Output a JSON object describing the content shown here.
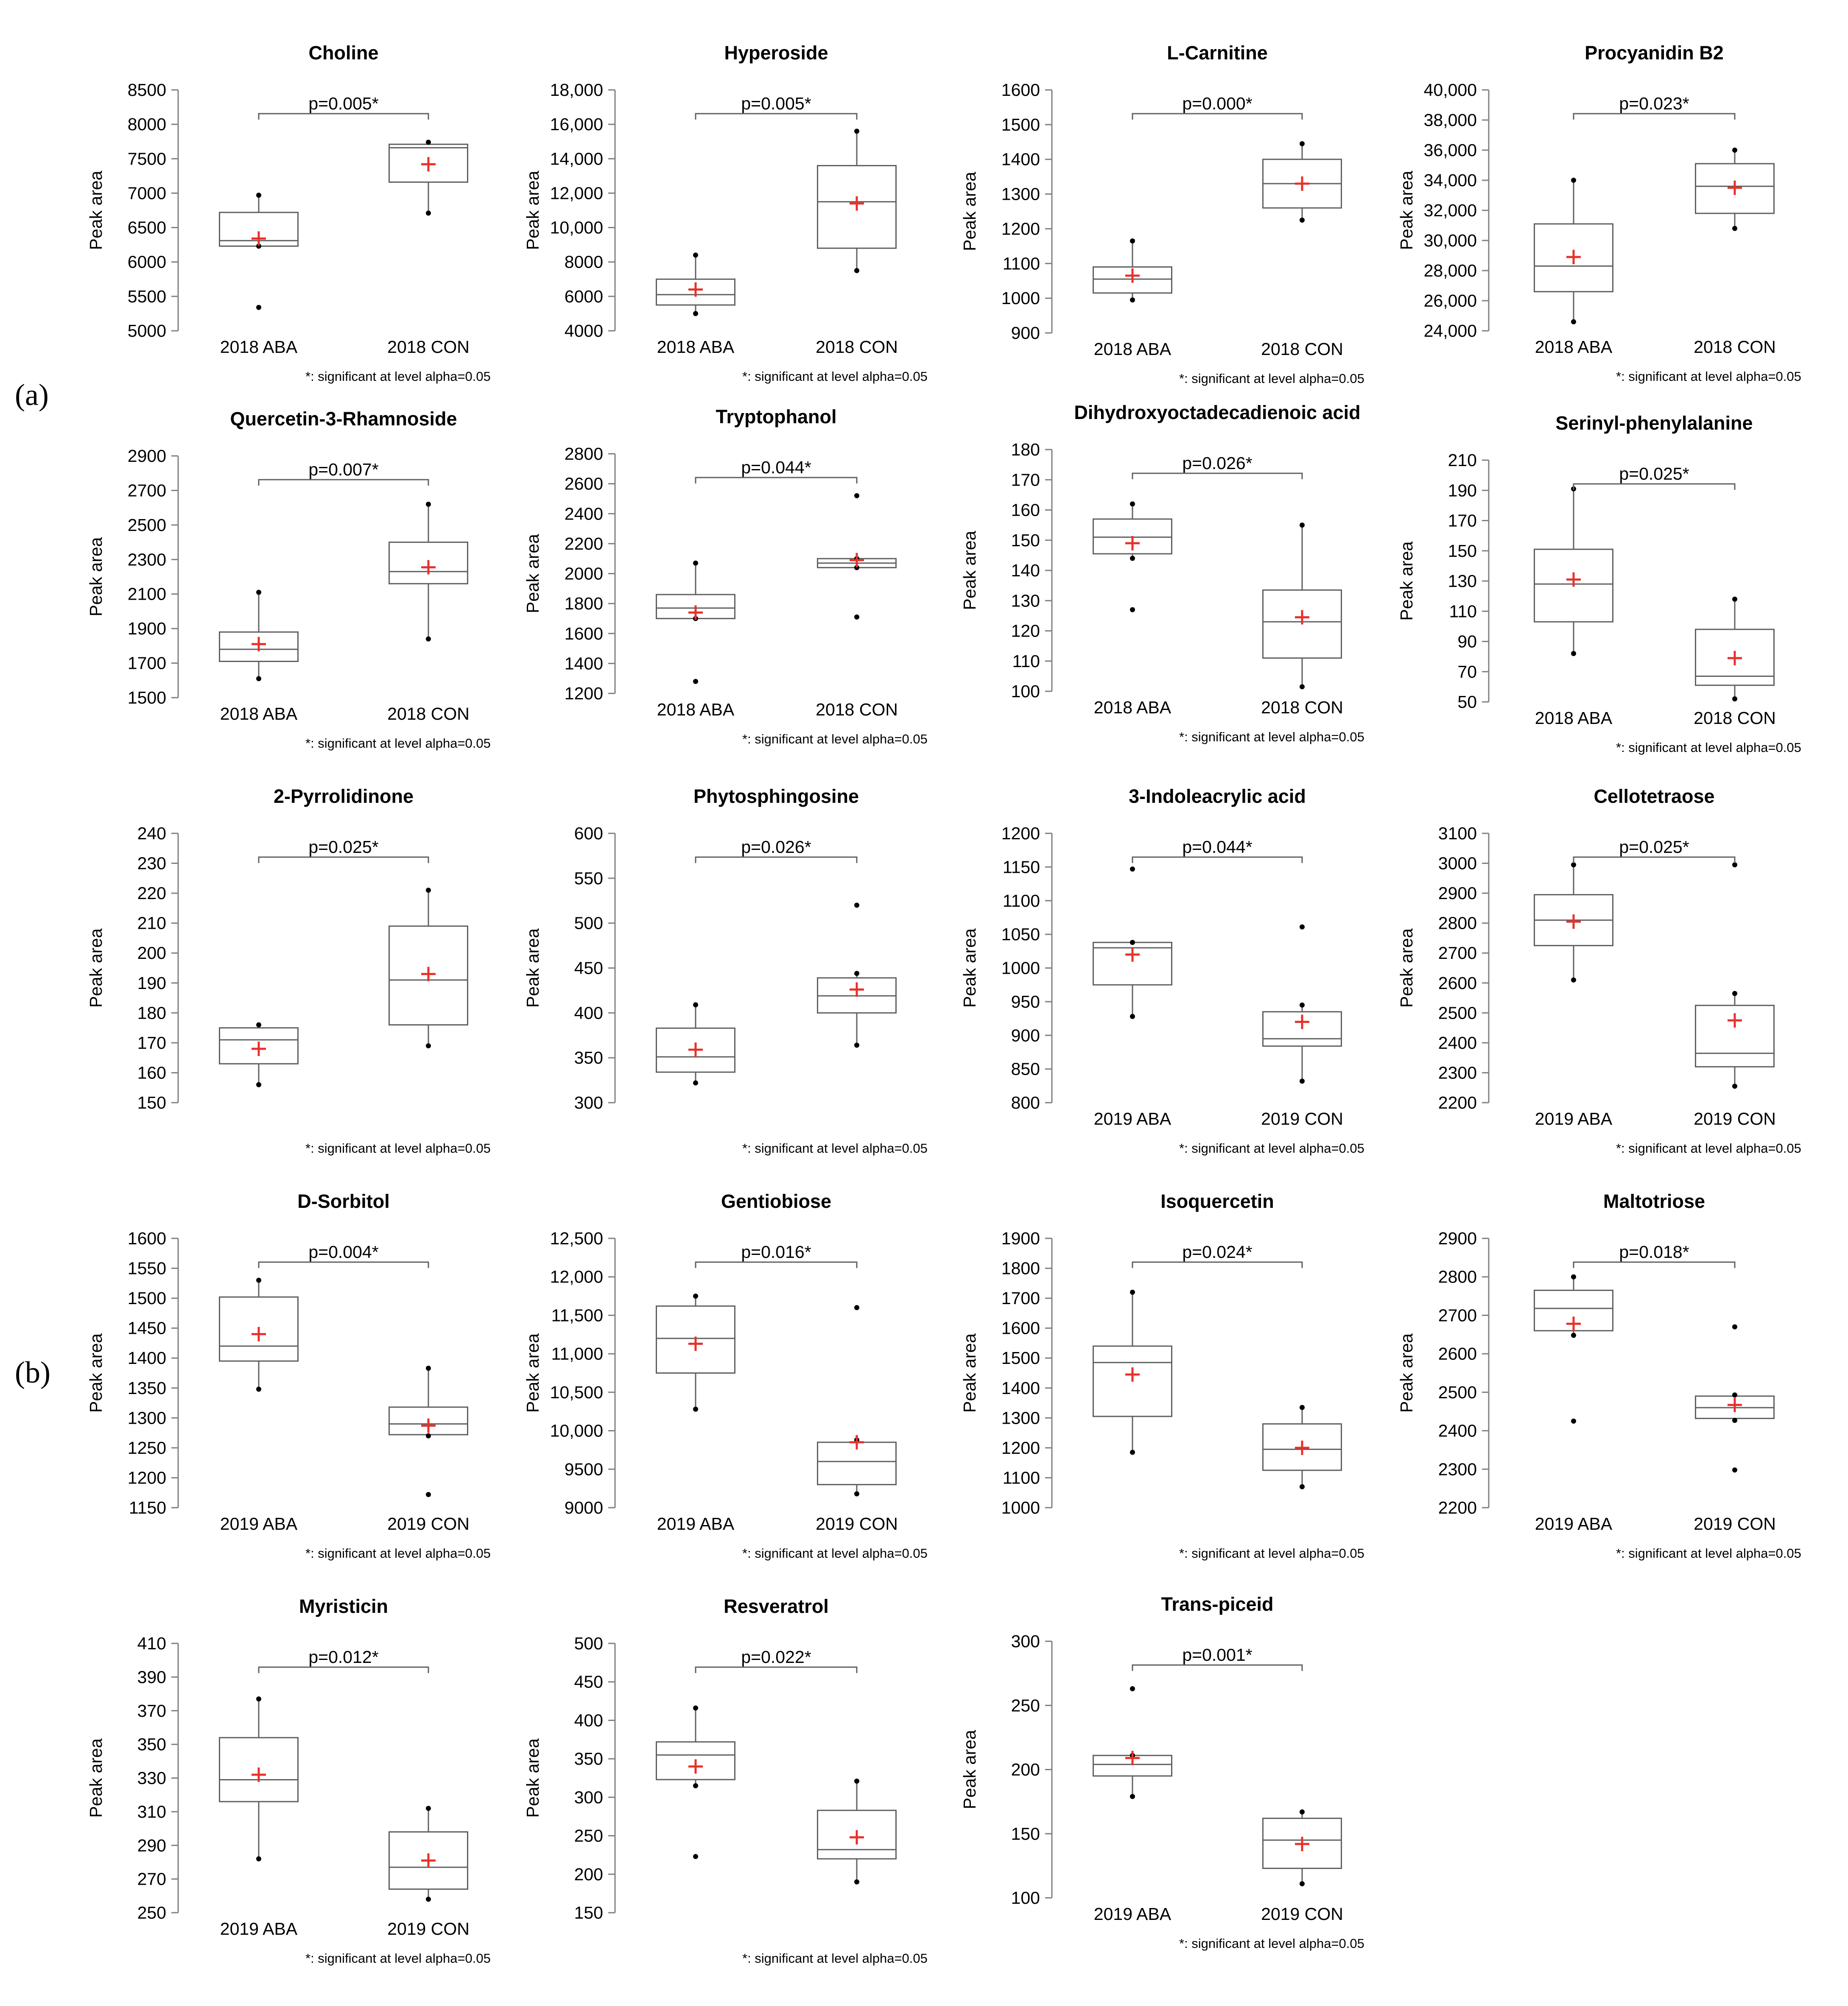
{
  "panel_labels": [
    "(a)",
    "(b)"
  ],
  "chart_data": [
    {
      "type": "box",
      "title": "Choline",
      "ylabel": "Peak area",
      "ylim": [
        5000,
        8500
      ],
      "yticks": [
        5000,
        5500,
        6000,
        6500,
        7000,
        7500,
        8000,
        8500
      ],
      "categories": [
        "2018 ABA",
        "2018 CON"
      ],
      "pvalue": "p=0.005*",
      "note": "*: significant at level alpha=0.05",
      "boxes": [
        {
          "min": 6230,
          "q1": 6230,
          "median": 6310,
          "q3": 6720,
          "max": 6970,
          "mean": 6340,
          "outliers": [
            5340
          ]
        },
        {
          "min": 6710,
          "q1": 7160,
          "median": 7660,
          "q3": 7710,
          "max": 7740,
          "mean": 7420,
          "outliers": []
        }
      ]
    },
    {
      "type": "box",
      "title": "Hyperoside",
      "ylabel": "Peak area",
      "ylim": [
        4000,
        18000
      ],
      "yticks": [
        4000,
        6000,
        8000,
        10000,
        12000,
        14000,
        16000,
        18000
      ],
      "categories": [
        "2018 ABA",
        "2018 CON"
      ],
      "pvalue": "p=0.005*",
      "note": "*: significant at level alpha=0.05",
      "boxes": [
        {
          "min": 5000,
          "q1": 5500,
          "median": 6100,
          "q3": 7000,
          "max": 8400,
          "mean": 6400,
          "outliers": []
        },
        {
          "min": 7500,
          "q1": 8800,
          "median": 11500,
          "q3": 13600,
          "max": 15600,
          "mean": 11400,
          "outliers": []
        }
      ]
    },
    {
      "type": "box",
      "title": "L-Carnitine",
      "ylabel": "Peak area",
      "ylim": [
        900,
        1600
      ],
      "yticks": [
        900,
        1000,
        1100,
        1200,
        1300,
        1400,
        1500,
        1600
      ],
      "categories": [
        "2018 ABA",
        "2018 CON"
      ],
      "pvalue": "p=0.000*",
      "note": "*: significant at level alpha=0.05",
      "boxes": [
        {
          "min": 995,
          "q1": 1015,
          "median": 1055,
          "q3": 1090,
          "max": 1165,
          "mean": 1065,
          "outliers": []
        },
        {
          "min": 1225,
          "q1": 1260,
          "median": 1330,
          "q3": 1400,
          "max": 1445,
          "mean": 1330,
          "outliers": []
        }
      ]
    },
    {
      "type": "box",
      "title": "Procyanidin B2",
      "ylabel": "Peak area",
      "ylim": [
        24000,
        40000
      ],
      "yticks": [
        24000,
        26000,
        28000,
        30000,
        32000,
        34000,
        36000,
        38000,
        40000
      ],
      "categories": [
        "2018 ABA",
        "2018 CON"
      ],
      "pvalue": "p=0.023*",
      "note": "*: significant at level alpha=0.05",
      "boxes": [
        {
          "min": 24600,
          "q1": 26600,
          "median": 28300,
          "q3": 31100,
          "max": 34000,
          "mean": 28900,
          "outliers": []
        },
        {
          "min": 30800,
          "q1": 31800,
          "median": 33600,
          "q3": 35100,
          "max": 36000,
          "mean": 33500,
          "outliers": []
        }
      ]
    },
    {
      "type": "box",
      "title": "Quercetin-3-Rhamnoside",
      "ylabel": "Peak area",
      "ylim": [
        1500,
        2900
      ],
      "yticks": [
        1500,
        1700,
        1900,
        2100,
        2300,
        2500,
        2700,
        2900
      ],
      "categories": [
        "2018 ABA",
        "2018 CON"
      ],
      "pvalue": "p=0.007*",
      "note": "*: significant at level alpha=0.05",
      "boxes": [
        {
          "min": 1610,
          "q1": 1710,
          "median": 1780,
          "q3": 1880,
          "max": 2110,
          "mean": 1810,
          "outliers": []
        },
        {
          "min": 1840,
          "q1": 2160,
          "median": 2230,
          "q3": 2400,
          "max": 2620,
          "mean": 2255,
          "outliers": []
        }
      ]
    },
    {
      "type": "box",
      "title": "Tryptophanol",
      "ylabel": "Peak area",
      "ylim": [
        1200,
        2800
      ],
      "yticks": [
        1200,
        1400,
        1600,
        1800,
        2000,
        2200,
        2400,
        2600,
        2800
      ],
      "categories": [
        "2018 ABA",
        "2018 CON"
      ],
      "pvalue": "p=0.044*",
      "note": "*: significant at level alpha=0.05",
      "boxes": [
        {
          "min": 1700,
          "q1": 1700,
          "median": 1770,
          "q3": 1860,
          "max": 2070,
          "mean": 1740,
          "outliers": [
            1280
          ]
        },
        {
          "min": 2040,
          "q1": 2040,
          "median": 2070,
          "q3": 2100,
          "max": 2100,
          "mean": 2090,
          "outliers": [
            1710,
            2520
          ]
        }
      ]
    },
    {
      "type": "box",
      "title": "Dihydroxyoctadecadienoic acid",
      "ylabel": "Peak area",
      "ylim": [
        100,
        180
      ],
      "yticks": [
        100,
        110,
        120,
        130,
        140,
        150,
        160,
        170,
        180
      ],
      "categories": [
        "2018 ABA",
        "2018 CON"
      ],
      "pvalue": "p=0.026*",
      "note": "*: significant at level alpha=0.05",
      "boxes": [
        {
          "min": 144,
          "q1": 145.5,
          "median": 151,
          "q3": 157,
          "max": 162,
          "mean": 149,
          "outliers": [
            127
          ]
        },
        {
          "min": 101.5,
          "q1": 111,
          "median": 123,
          "q3": 133.5,
          "max": 155,
          "mean": 124.5,
          "outliers": []
        }
      ]
    },
    {
      "type": "box",
      "title": "Serinyl-phenylalanine",
      "ylabel": "Peak area",
      "ylim": [
        50,
        210
      ],
      "yticks": [
        50,
        70,
        90,
        110,
        130,
        150,
        170,
        190,
        210
      ],
      "categories": [
        "2018 ABA",
        "2018 CON"
      ],
      "pvalue": "p=0.025*",
      "note": "*: significant at level alpha=0.05",
      "boxes": [
        {
          "min": 82,
          "q1": 103,
          "median": 128,
          "q3": 151,
          "max": 191,
          "mean": 131,
          "outliers": []
        },
        {
          "min": 52,
          "q1": 61,
          "median": 67,
          "q3": 98,
          "max": 118,
          "mean": 79,
          "outliers": []
        }
      ]
    },
    {
      "type": "box",
      "title": "2-Pyrrolidinone",
      "ylabel": "Peak area",
      "ylim": [
        150,
        240
      ],
      "yticks": [
        150,
        160,
        170,
        180,
        190,
        200,
        210,
        220,
        230,
        240
      ],
      "categories": [
        "",
        ""
      ],
      "pvalue": "p=0.025*",
      "note": "*: significant at level alpha=0.05",
      "boxes": [
        {
          "min": 156,
          "q1": 163,
          "median": 171,
          "q3": 175,
          "max": 176,
          "mean": 168,
          "outliers": []
        },
        {
          "min": 169,
          "q1": 176,
          "median": 191,
          "q3": 209,
          "max": 221,
          "mean": 193,
          "outliers": []
        }
      ]
    },
    {
      "type": "box",
      "title": "Phytosphingosine",
      "ylabel": "Peak area",
      "ylim": [
        300,
        600
      ],
      "yticks": [
        300,
        350,
        400,
        450,
        500,
        550,
        600
      ],
      "categories": [
        "",
        ""
      ],
      "pvalue": "p=0.026*",
      "note": "*: significant at level alpha=0.05",
      "boxes": [
        {
          "min": 322,
          "q1": 334,
          "median": 351,
          "q3": 383,
          "max": 409,
          "mean": 359,
          "outliers": []
        },
        {
          "min": 364,
          "q1": 400,
          "median": 419,
          "q3": 439,
          "max": 444,
          "mean": 426,
          "outliers": [
            520
          ]
        }
      ]
    },
    {
      "type": "box",
      "title": "3-Indoleacrylic acid",
      "ylabel": "Peak area",
      "ylim": [
        800,
        1200
      ],
      "yticks": [
        800,
        850,
        900,
        950,
        1000,
        1050,
        1100,
        1150,
        1200
      ],
      "categories": [
        "2019 ABA",
        "2019 CON"
      ],
      "pvalue": "p=0.044*",
      "note": "*: significant at level alpha=0.05",
      "boxes": [
        {
          "min": 928,
          "q1": 975,
          "median": 1030,
          "q3": 1038,
          "max": 1038,
          "mean": 1020,
          "outliers": [
            1147
          ]
        },
        {
          "min": 832,
          "q1": 884,
          "median": 895,
          "q3": 935,
          "max": 945,
          "mean": 920,
          "outliers": [
            1061
          ]
        }
      ]
    },
    {
      "type": "box",
      "title": "Cellotetraose",
      "ylabel": "Peak area",
      "ylim": [
        2200,
        3100
      ],
      "yticks": [
        2200,
        2300,
        2400,
        2500,
        2600,
        2700,
        2800,
        2900,
        3000,
        3100
      ],
      "categories": [
        "2019 ABA",
        "2019 CON"
      ],
      "pvalue": "p=0.025*",
      "note": "*: significant at level alpha=0.05",
      "boxes": [
        {
          "min": 2610,
          "q1": 2725,
          "median": 2810,
          "q3": 2895,
          "max": 2995,
          "mean": 2805,
          "outliers": []
        },
        {
          "min": 2255,
          "q1": 2320,
          "median": 2365,
          "q3": 2525,
          "max": 2565,
          "mean": 2475,
          "outliers": [
            2995
          ]
        }
      ]
    },
    {
      "type": "box",
      "title": "D-Sorbitol",
      "ylabel": "Peak area",
      "ylim": [
        1150,
        1600
      ],
      "yticks": [
        1150,
        1200,
        1250,
        1300,
        1350,
        1400,
        1450,
        1500,
        1550,
        1600
      ],
      "categories": [
        "2019 ABA",
        "2019 CON"
      ],
      "pvalue": "p=0.004*",
      "note": "*: significant at level alpha=0.05",
      "boxes": [
        {
          "min": 1348,
          "q1": 1395,
          "median": 1420,
          "q3": 1502,
          "max": 1530,
          "mean": 1440,
          "outliers": []
        },
        {
          "min": 1270,
          "q1": 1272,
          "median": 1290,
          "q3": 1318,
          "max": 1383,
          "mean": 1287,
          "outliers": [
            1172
          ]
        }
      ]
    },
    {
      "type": "box",
      "title": "Gentiobiose",
      "ylabel": "Peak area",
      "ylim": [
        9000,
        12500
      ],
      "yticks": [
        9000,
        9500,
        10000,
        10500,
        11000,
        11500,
        12000,
        12500
      ],
      "categories": [
        "2019 ABA",
        "2019 CON"
      ],
      "pvalue": "p=0.016*",
      "note": "*: significant at level alpha=0.05",
      "boxes": [
        {
          "min": 10280,
          "q1": 10750,
          "median": 11200,
          "q3": 11620,
          "max": 11750,
          "mean": 11130,
          "outliers": []
        },
        {
          "min": 9180,
          "q1": 9300,
          "median": 9600,
          "q3": 9850,
          "max": 9880,
          "mean": 9850,
          "outliers": [
            11600
          ]
        }
      ]
    },
    {
      "type": "box",
      "title": "Isoquercetin",
      "ylabel": "Peak area",
      "ylim": [
        1000,
        1900
      ],
      "yticks": [
        1000,
        1100,
        1200,
        1300,
        1400,
        1500,
        1600,
        1700,
        1800,
        1900
      ],
      "categories": [
        "",
        ""
      ],
      "pvalue": "p=0.024*",
      "note": "*: significant at level alpha=0.05",
      "boxes": [
        {
          "min": 1185,
          "q1": 1305,
          "median": 1485,
          "q3": 1540,
          "max": 1720,
          "mean": 1445,
          "outliers": []
        },
        {
          "min": 1070,
          "q1": 1125,
          "median": 1195,
          "q3": 1280,
          "max": 1335,
          "mean": 1200,
          "outliers": []
        }
      ]
    },
    {
      "type": "box",
      "title": "Maltotriose",
      "ylabel": "Peak area",
      "ylim": [
        2200,
        2900
      ],
      "yticks": [
        2200,
        2300,
        2400,
        2500,
        2600,
        2700,
        2800,
        2900
      ],
      "categories": [
        "2019 ABA",
        "2019 CON"
      ],
      "pvalue": "p=0.018*",
      "note": "*: significant at level alpha=0.05",
      "boxes": [
        {
          "min": 2648,
          "q1": 2660,
          "median": 2718,
          "q3": 2765,
          "max": 2800,
          "mean": 2678,
          "outliers": [
            2425
          ]
        },
        {
          "min": 2427,
          "q1": 2432,
          "median": 2460,
          "q3": 2490,
          "max": 2493,
          "mean": 2467,
          "outliers": [
            2298,
            2670
          ]
        }
      ]
    },
    {
      "type": "box",
      "title": "Myristicin",
      "ylabel": "Peak area",
      "ylim": [
        250,
        410
      ],
      "yticks": [
        250,
        270,
        290,
        310,
        330,
        350,
        370,
        390,
        410
      ],
      "categories": [
        "2019 ABA",
        "2019 CON"
      ],
      "pvalue": "p=0.012*",
      "note": "*: significant at level alpha=0.05",
      "boxes": [
        {
          "min": 282,
          "q1": 316,
          "median": 329,
          "q3": 354,
          "max": 377,
          "mean": 332,
          "outliers": []
        },
        {
          "min": 258,
          "q1": 264,
          "median": 277,
          "q3": 298,
          "max": 312,
          "mean": 281,
          "outliers": []
        }
      ]
    },
    {
      "type": "box",
      "title": "Resveratrol",
      "ylabel": "Peak area",
      "ylim": [
        150,
        500
      ],
      "yticks": [
        150,
        200,
        250,
        300,
        350,
        400,
        450,
        500
      ],
      "categories": [
        "",
        ""
      ],
      "pvalue": "p=0.022*",
      "note": "*: significant at level alpha=0.05",
      "boxes": [
        {
          "min": 315,
          "q1": 323,
          "median": 355,
          "q3": 372,
          "max": 416,
          "mean": 340,
          "outliers": [
            223
          ]
        },
        {
          "min": 190,
          "q1": 220,
          "median": 232,
          "q3": 283,
          "max": 321,
          "mean": 248,
          "outliers": []
        }
      ]
    },
    {
      "type": "box",
      "title": "Trans-piceid",
      "ylabel": "Peak area",
      "ylim": [
        100,
        300
      ],
      "yticks": [
        100,
        150,
        200,
        250,
        300
      ],
      "categories": [
        "2019 ABA",
        "2019 CON"
      ],
      "pvalue": "p=0.001*",
      "note": "*: significant at level alpha=0.05",
      "boxes": [
        {
          "min": 179,
          "q1": 195,
          "median": 204,
          "q3": 211,
          "max": 211,
          "mean": 209,
          "outliers": [
            263
          ]
        },
        {
          "min": 111,
          "q1": 123,
          "median": 145,
          "q3": 162,
          "max": 167,
          "mean": 142,
          "outliers": []
        }
      ]
    }
  ],
  "colors": {
    "mean_marker": "#e8302a",
    "box_stroke": "#606060",
    "axis": "#808080",
    "text": "#000000"
  }
}
